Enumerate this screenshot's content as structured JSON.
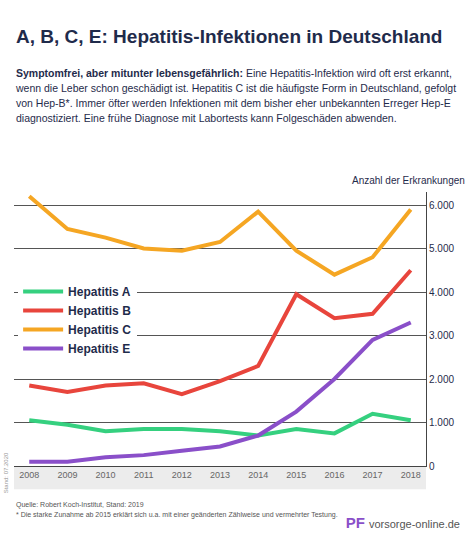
{
  "chart_data": {
    "type": "line",
    "title": "A, B, C, E: Hepatitis-Infektionen in Deutschland",
    "subtitle": [
      "Symptomfrei, aber mitunter lebensgefährlich:",
      "Eine Hepatitis-Infektion wird oft erst erkannt, wenn die Leber schon geschädigt ist. Hepatitis C ist die häufigste Form in Deutschland, gefolgt von Hep-B*. Immer öfter werden Infektionen mit dem bisher eher unbekannten Erreger Hep-E diagnostiziert. Eine frühe Diagnose mit Labortests kann Folgeschäden abwenden."
    ],
    "ylabel": "Anzahl der Erkrankungen",
    "x": [
      2008,
      2009,
      2010,
      2011,
      2012,
      2013,
      2014,
      2015,
      2016,
      2017,
      2018
    ],
    "series": [
      {
        "name": "Hepatitis A",
        "color": "#35d07f",
        "values": [
          1050,
          950,
          800,
          850,
          850,
          800,
          700,
          850,
          750,
          1200,
          1050
        ]
      },
      {
        "name": "Hepatitis B",
        "color": "#e8453c",
        "values": [
          1850,
          1700,
          1850,
          1900,
          1650,
          1950,
          2300,
          3950,
          3400,
          3500,
          4500
        ]
      },
      {
        "name": "Hepatitis C",
        "color": "#f5a623",
        "values": [
          6200,
          5450,
          5250,
          5000,
          4950,
          5150,
          5850,
          4950,
          4400,
          4800,
          5900
        ]
      },
      {
        "name": "Hepatitis E",
        "color": "#8a4fc9",
        "values": [
          100,
          100,
          200,
          250,
          350,
          450,
          700,
          1250,
          2000,
          2900,
          3300
        ]
      }
    ],
    "xlim": [
      2007.6,
      2018.4
    ],
    "xticks": [
      2008,
      2009,
      2010,
      2011,
      2012,
      2013,
      2014,
      2015,
      2016,
      2017,
      2018
    ],
    "ylim": [
      0,
      6300
    ],
    "yticks": [
      0,
      {
        "value": 1000,
        "label": "1.000"
      },
      {
        "value": 2000,
        "label": "2.000"
      },
      {
        "value": 3000,
        "label": "3.000"
      },
      {
        "value": 4000,
        "label": "4.000"
      },
      {
        "value": 5000,
        "label": "5.000"
      },
      {
        "value": 6000,
        "label": "6.000"
      }
    ],
    "grid": true,
    "legend": "left",
    "annotations": {
      "source": "Quelle: Robert Koch-Institut, Stand: 2019",
      "note": "* Die starke Zunahme ab 2015 erklärt sich u.a. mit einer geänderten Zählweise und vermehrter Testung.",
      "logo_mark": "PF",
      "logo_text": "vorsorge-online.de",
      "stamp": "Stand: 07.2020"
    }
  }
}
